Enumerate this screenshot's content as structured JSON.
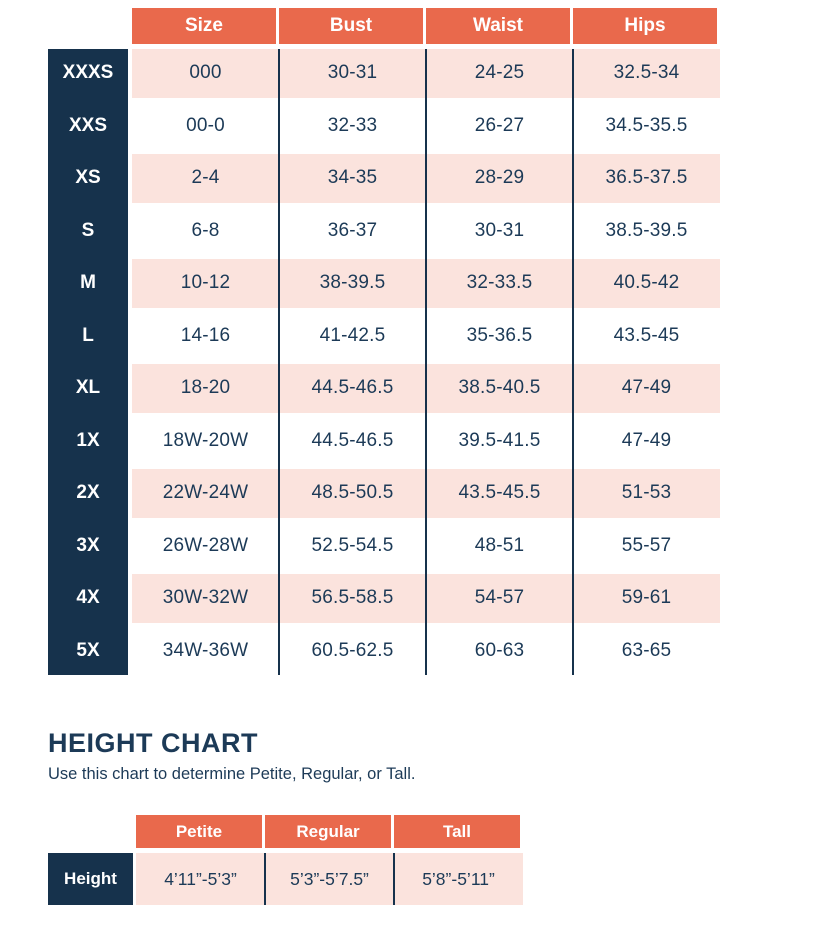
{
  "colors": {
    "coral": "#e9694c",
    "navy": "#16324c",
    "pink": "#fbe3dd",
    "text": "#1c3a57"
  },
  "size_chart": {
    "header": {
      "size": "Size",
      "bust": "Bust",
      "waist": "Waist",
      "hips": "Hips"
    },
    "rows": [
      {
        "label": "XXXS",
        "size": "000",
        "bust": "30-31",
        "waist": "24-25",
        "hips": "32.5-34"
      },
      {
        "label": "XXS",
        "size": "00-0",
        "bust": "32-33",
        "waist": "26-27",
        "hips": "34.5-35.5"
      },
      {
        "label": "XS",
        "size": "2-4",
        "bust": "34-35",
        "waist": "28-29",
        "hips": "36.5-37.5"
      },
      {
        "label": "S",
        "size": "6-8",
        "bust": "36-37",
        "waist": "30-31",
        "hips": "38.5-39.5"
      },
      {
        "label": "M",
        "size": "10-12",
        "bust": "38-39.5",
        "waist": "32-33.5",
        "hips": "40.5-42"
      },
      {
        "label": "L",
        "size": "14-16",
        "bust": "41-42.5",
        "waist": "35-36.5",
        "hips": "43.5-45"
      },
      {
        "label": "XL",
        "size": "18-20",
        "bust": "44.5-46.5",
        "waist": "38.5-40.5",
        "hips": "47-49"
      },
      {
        "label": "1X",
        "size": "18W-20W",
        "bust": "44.5-46.5",
        "waist": "39.5-41.5",
        "hips": "47-49"
      },
      {
        "label": "2X",
        "size": "22W-24W",
        "bust": "48.5-50.5",
        "waist": "43.5-45.5",
        "hips": "51-53"
      },
      {
        "label": "3X",
        "size": "26W-28W",
        "bust": "52.5-54.5",
        "waist": "48-51",
        "hips": "55-57"
      },
      {
        "label": "4X",
        "size": "30W-32W",
        "bust": "56.5-58.5",
        "waist": "54-57",
        "hips": "59-61"
      },
      {
        "label": "5X",
        "size": "34W-36W",
        "bust": "60.5-62.5",
        "waist": "60-63",
        "hips": "63-65"
      }
    ]
  },
  "height_section": {
    "title": "HEIGHT CHART",
    "subtitle": "Use this chart to determine Petite, Regular, or Tall.",
    "header": {
      "petite": "Petite",
      "regular": "Regular",
      "tall": "Tall"
    },
    "row_label": "Height",
    "values": {
      "petite": "4’11”-5’3”",
      "regular": "5’3”-5’7.5”",
      "tall": "5’8”-5’11”"
    }
  }
}
